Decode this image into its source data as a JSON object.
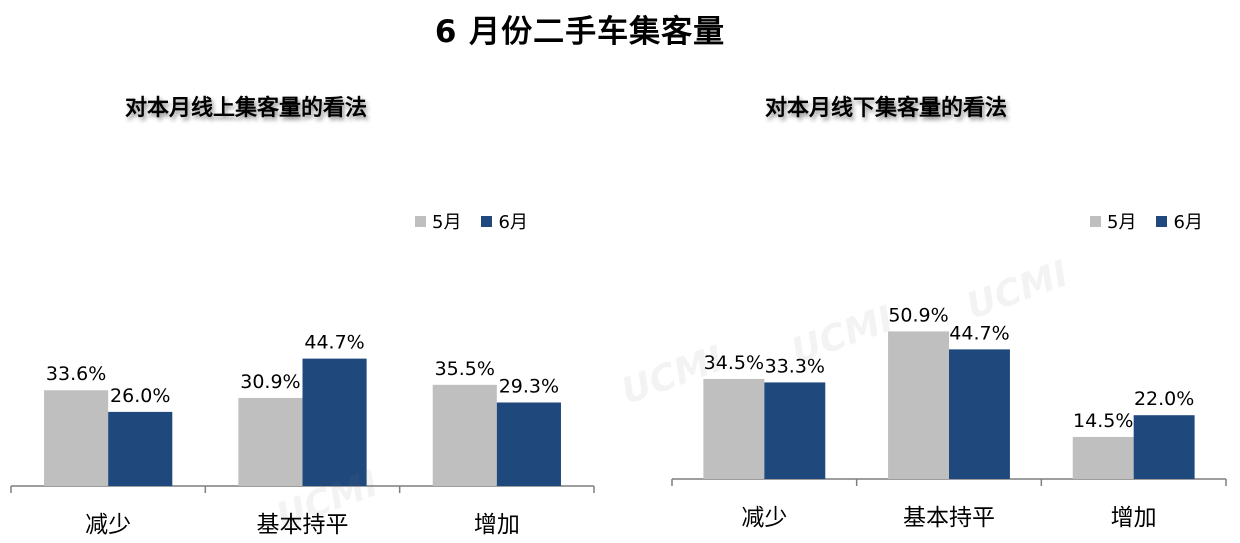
{
  "page": {
    "title": "6 月份二手车集客量",
    "watermark": "UCMI"
  },
  "colors": {
    "may": "#bfbfbf",
    "june": "#1f497d",
    "axis": "#7f7f7f"
  },
  "legend": {
    "may": "5月",
    "june": "6月"
  },
  "chart_data": [
    {
      "type": "bar",
      "title": "对本月线上集客量的看法",
      "categories": [
        "减少",
        "基本持平",
        "增加"
      ],
      "series": [
        {
          "name": "5月",
          "values": [
            33.6,
            30.9,
            35.5
          ],
          "labels": [
            "33.6%",
            "30.9%",
            "35.5%"
          ]
        },
        {
          "name": "6月",
          "values": [
            26.0,
            44.7,
            29.3
          ],
          "labels": [
            "26.0%",
            "44.7%",
            "29.3%"
          ]
        }
      ],
      "value_unit": "%",
      "grid": false,
      "legend_position": "top-right"
    },
    {
      "type": "bar",
      "title": "对本月线下集客量的看法",
      "categories": [
        "减少",
        "基本持平",
        "增加"
      ],
      "series": [
        {
          "name": "5月",
          "values": [
            34.5,
            50.9,
            14.5
          ],
          "labels": [
            "34.5%",
            "50.9%",
            "14.5%"
          ]
        },
        {
          "name": "6月",
          "values": [
            33.3,
            44.7,
            22.0
          ],
          "labels": [
            "33.3%",
            "44.7%",
            "22.0%"
          ]
        }
      ],
      "value_unit": "%",
      "grid": false,
      "legend_position": "top-right"
    }
  ]
}
